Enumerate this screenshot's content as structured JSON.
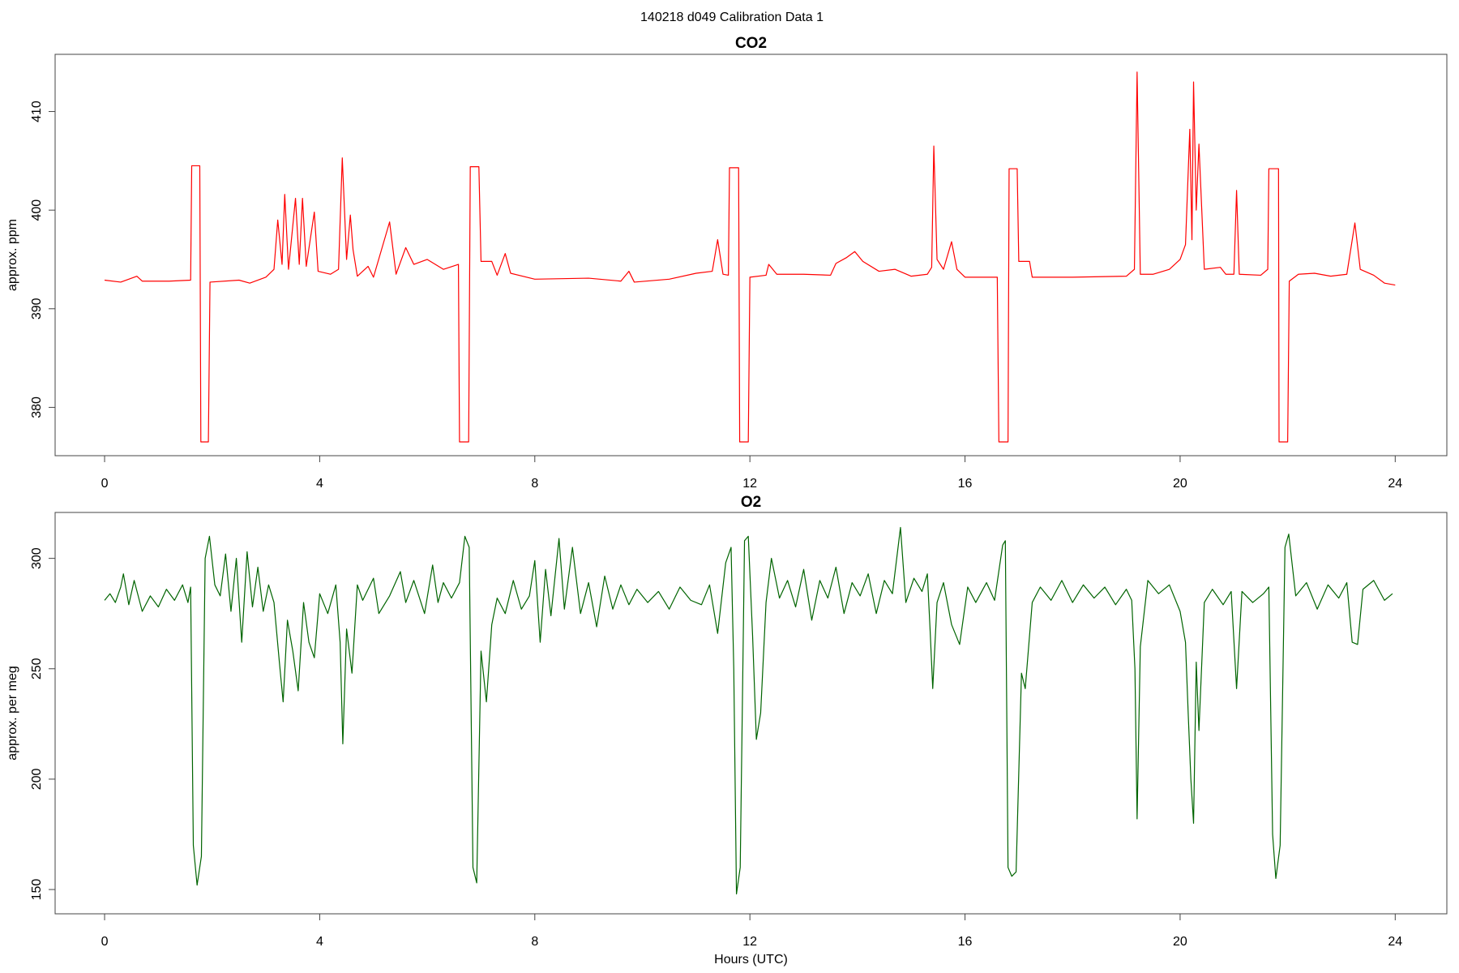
{
  "title": "140218   d049   Calibration Data 1",
  "chart_data": [
    {
      "type": "line",
      "title": "CO2",
      "ylabel": "approx. ppm",
      "color": "#ff0000",
      "xlim": [
        -0.92,
        24.96
      ],
      "xticks": [
        0,
        4,
        8,
        12,
        16,
        20,
        24
      ],
      "ylim": [
        375.1,
        415.8
      ],
      "yticks": [
        380,
        390,
        400,
        410
      ],
      "x": [
        0,
        0.3,
        0.6,
        0.7,
        1.2,
        1.6,
        1.62,
        1.77,
        1.79,
        1.93,
        1.96,
        2.5,
        2.7,
        3.0,
        3.15,
        3.22,
        3.3,
        3.35,
        3.42,
        3.55,
        3.62,
        3.68,
        3.75,
        3.9,
        3.97,
        4.2,
        4.35,
        4.42,
        4.5,
        4.57,
        4.62,
        4.7,
        4.9,
        5.0,
        5.3,
        5.42,
        5.6,
        5.75,
        6.0,
        6.3,
        6.58,
        6.6,
        6.77,
        6.8,
        6.96,
        7.0,
        7.2,
        7.3,
        7.45,
        7.55,
        8.0,
        9.0,
        9.6,
        9.75,
        9.85,
        10.5,
        11.0,
        11.3,
        11.4,
        11.5,
        11.6,
        11.62,
        11.79,
        11.81,
        11.97,
        12.0,
        12.3,
        12.35,
        12.5,
        13.0,
        13.5,
        13.6,
        13.8,
        13.95,
        14.1,
        14.4,
        14.7,
        15.0,
        15.3,
        15.38,
        15.42,
        15.48,
        15.6,
        15.75,
        15.85,
        16.0,
        16.6,
        16.63,
        16.8,
        16.82,
        16.97,
        17.0,
        17.2,
        17.25,
        18.0,
        19.0,
        19.15,
        19.2,
        19.26,
        19.5,
        19.8,
        20.0,
        20.1,
        20.18,
        20.22,
        20.25,
        20.3,
        20.35,
        20.45,
        20.75,
        20.85,
        21.0,
        21.05,
        21.1,
        21.5,
        21.63,
        21.65,
        21.83,
        21.84,
        22.0,
        22.03,
        22.2,
        22.5,
        22.8,
        23.1,
        23.25,
        23.35,
        23.6,
        23.8,
        24.0
      ],
      "values": [
        392.9,
        392.7,
        393.3,
        392.8,
        392.8,
        392.9,
        404.5,
        404.5,
        376.5,
        376.5,
        392.7,
        392.9,
        392.6,
        393.2,
        394,
        399,
        394.5,
        401.6,
        394,
        401.2,
        394.5,
        401.2,
        394.3,
        399.8,
        393.8,
        393.5,
        394,
        405.3,
        395,
        399.5,
        396,
        393.3,
        394.3,
        393.2,
        398.8,
        393.5,
        396.2,
        394.5,
        395,
        394,
        394.5,
        376.5,
        376.5,
        404.4,
        404.4,
        394.8,
        394.8,
        393.4,
        395.6,
        393.6,
        393,
        393.1,
        392.8,
        393.8,
        392.7,
        393,
        393.6,
        393.8,
        397,
        393.5,
        393.4,
        404.3,
        404.3,
        376.5,
        376.5,
        393.2,
        393.4,
        394.5,
        393.5,
        393.5,
        393.4,
        394.6,
        395.2,
        395.8,
        394.8,
        393.8,
        394,
        393.3,
        393.5,
        394.2,
        406.5,
        395,
        394,
        396.8,
        394,
        393.2,
        393.2,
        376.5,
        376.5,
        404.2,
        404.2,
        394.8,
        394.8,
        393.2,
        393.2,
        393.3,
        394,
        414,
        393.5,
        393.5,
        394,
        395,
        396.5,
        408.2,
        397,
        413,
        400,
        406.7,
        394,
        394.2,
        393.5,
        393.5,
        402,
        393.5,
        393.4,
        394,
        404.2,
        404.2,
        376.5,
        376.5,
        392.8,
        393.5,
        393.6,
        393.3,
        393.5,
        398.7,
        394,
        393.4,
        392.6,
        392.4
      ]
    },
    {
      "type": "line",
      "title": "O2",
      "ylabel": "approx. per meg",
      "xlabel": "Hours (UTC)",
      "color": "#006400",
      "xlim": [
        -0.92,
        24.96
      ],
      "xticks": [
        0,
        4,
        8,
        12,
        16,
        20,
        24
      ],
      "ylim": [
        139,
        320.8
      ],
      "yticks": [
        150,
        200,
        250,
        300
      ],
      "x": [
        0,
        0.1,
        0.2,
        0.3,
        0.35,
        0.45,
        0.55,
        0.7,
        0.85,
        1.0,
        1.15,
        1.3,
        1.45,
        1.55,
        1.6,
        1.65,
        1.72,
        1.8,
        1.87,
        1.95,
        2.05,
        2.15,
        2.25,
        2.35,
        2.45,
        2.55,
        2.65,
        2.75,
        2.85,
        2.95,
        3.05,
        3.15,
        3.25,
        3.32,
        3.4,
        3.5,
        3.6,
        3.7,
        3.8,
        3.9,
        4.0,
        4.15,
        4.3,
        4.38,
        4.43,
        4.5,
        4.6,
        4.7,
        4.8,
        5.0,
        5.1,
        5.3,
        5.5,
        5.6,
        5.75,
        5.95,
        6.1,
        6.2,
        6.3,
        6.45,
        6.6,
        6.7,
        6.78,
        6.85,
        6.92,
        7.0,
        7.1,
        7.2,
        7.3,
        7.45,
        7.6,
        7.75,
        7.9,
        8.0,
        8.1,
        8.2,
        8.3,
        8.45,
        8.55,
        8.7,
        8.85,
        9.0,
        9.15,
        9.3,
        9.45,
        9.6,
        9.75,
        9.9,
        10.1,
        10.3,
        10.5,
        10.7,
        10.9,
        11.1,
        11.25,
        11.4,
        11.55,
        11.65,
        11.7,
        11.75,
        11.82,
        11.9,
        11.97,
        12.05,
        12.12,
        12.2,
        12.3,
        12.4,
        12.55,
        12.7,
        12.85,
        13.0,
        13.15,
        13.3,
        13.45,
        13.6,
        13.75,
        13.9,
        14.05,
        14.2,
        14.35,
        14.5,
        14.65,
        14.8,
        14.9,
        15.05,
        15.2,
        15.3,
        15.35,
        15.4,
        15.48,
        15.6,
        15.75,
        15.9,
        16.05,
        16.2,
        16.4,
        16.55,
        16.7,
        16.75,
        16.8,
        16.87,
        16.95,
        17.05,
        17.12,
        17.25,
        17.4,
        17.6,
        17.8,
        18.0,
        18.2,
        18.4,
        18.6,
        18.8,
        19.0,
        19.1,
        19.16,
        19.2,
        19.26,
        19.4,
        19.6,
        19.8,
        20.0,
        20.1,
        20.15,
        20.2,
        20.25,
        20.3,
        20.35,
        20.45,
        20.6,
        20.8,
        20.95,
        21.05,
        21.15,
        21.35,
        21.55,
        21.65,
        21.72,
        21.78,
        21.86,
        21.95,
        22.02,
        22.15,
        22.35,
        22.55,
        22.75,
        22.95,
        23.1,
        23.2,
        23.3,
        23.4,
        23.6,
        23.8,
        23.95
      ],
      "values": [
        281,
        284,
        280,
        287,
        293,
        279,
        290,
        276,
        283,
        278,
        286,
        281,
        288,
        280,
        287,
        170,
        152,
        165,
        300,
        310,
        288,
        283,
        302,
        276,
        300,
        262,
        303,
        278,
        296,
        276,
        288,
        280,
        253,
        235,
        272,
        258,
        240,
        280,
        262,
        255,
        284,
        275,
        288,
        262,
        216,
        268,
        248,
        288,
        281,
        291,
        275,
        283,
        294,
        280,
        290,
        275,
        297,
        280,
        289,
        282,
        289,
        310,
        305,
        160,
        153,
        258,
        235,
        270,
        282,
        275,
        290,
        277,
        283,
        299,
        262,
        295,
        274,
        309,
        277,
        305,
        275,
        289,
        269,
        292,
        277,
        288,
        279,
        286,
        280,
        285,
        277,
        287,
        281,
        279,
        288,
        266,
        298,
        305,
        250,
        148,
        160,
        308,
        310,
        265,
        218,
        230,
        280,
        300,
        282,
        290,
        278,
        295,
        272,
        290,
        282,
        296,
        275,
        289,
        283,
        293,
        275,
        290,
        284,
        314,
        280,
        291,
        285,
        293,
        268,
        241,
        280,
        289,
        270,
        261,
        287,
        280,
        289,
        281,
        306,
        308,
        160,
        156,
        158,
        248,
        241,
        280,
        287,
        281,
        290,
        280,
        288,
        282,
        287,
        279,
        286,
        281,
        250,
        182,
        260,
        290,
        284,
        288,
        276,
        262,
        230,
        200,
        180,
        253,
        222,
        280,
        286,
        279,
        285,
        241,
        285,
        280,
        284,
        287,
        175,
        155,
        170,
        305,
        311,
        283,
        289,
        277,
        288,
        282,
        289,
        262,
        261,
        286,
        290,
        281,
        284
      ]
    }
  ]
}
